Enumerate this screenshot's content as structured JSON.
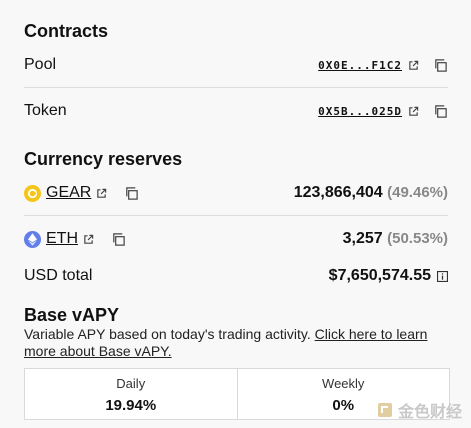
{
  "contracts": {
    "title": "Contracts",
    "pool": {
      "label": "Pool",
      "address": "0X0E...F1C2"
    },
    "token": {
      "label": "Token",
      "address": "0X5B...025D"
    }
  },
  "reserves": {
    "title": "Currency reserves",
    "items": [
      {
        "name": "GEAR",
        "amount": "123,866,404",
        "percent": "(49.46%)",
        "icon": "gear-coin-icon",
        "color": "#f5c518"
      },
      {
        "name": "ETH",
        "amount": "3,257",
        "percent": "(50.53%)",
        "icon": "eth-coin-icon",
        "color": "#627eea"
      }
    ],
    "usd_total_label": "USD total",
    "usd_total_value": "$7,650,574.55"
  },
  "apy": {
    "title": "Base vAPY",
    "description": "Variable APY based on today's trading activity.",
    "link_text": "Click here to learn more about Base vAPY.",
    "columns": [
      {
        "label": "Daily",
        "value": "19.94%"
      },
      {
        "label": "Weekly",
        "value": "0%"
      }
    ]
  },
  "watermark": {
    "text": "金色财经"
  }
}
